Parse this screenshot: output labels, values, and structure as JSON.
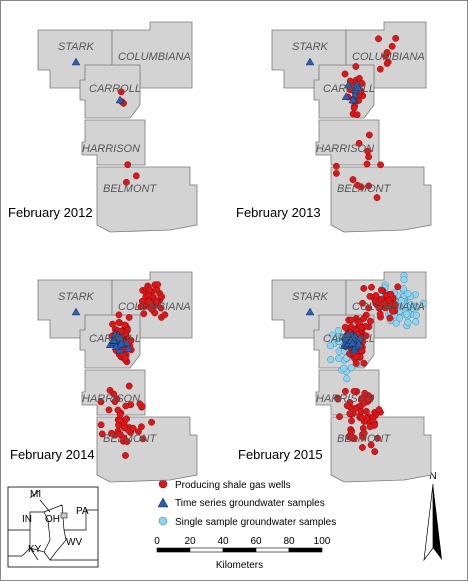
{
  "panels": [
    {
      "caption": "February 2012",
      "counties": [
        "STARK",
        "COLUMBIANA",
        "CARROLL",
        "HARRISON",
        "BELMONT"
      ]
    },
    {
      "caption": "February 2013",
      "counties": [
        "STARK",
        "COLUMBIANA",
        "CARROLL",
        "HARRISON",
        "BELMONT"
      ]
    },
    {
      "caption": "February 2014",
      "counties": [
        "STARK",
        "COLUMBIANA",
        "CARROLL",
        "HARRISON",
        "BELMONT"
      ]
    },
    {
      "caption": "February 2015",
      "counties": [
        "STARK",
        "COLUMBIANA",
        "CARROLL",
        "HARRISON",
        "BELMONT"
      ]
    }
  ],
  "legend": [
    "Producing shale gas wells",
    "Time series groundwater samples",
    "Single sample groundwater samples"
  ],
  "scale_bar": {
    "ticks": [
      0,
      20,
      40,
      60,
      80,
      100
    ],
    "unit": "Kilometers"
  },
  "north_arrow": "N",
  "inset": {
    "labels": [
      "MI",
      "IN",
      "OH",
      "PA",
      "KY",
      "WV"
    ]
  }
}
